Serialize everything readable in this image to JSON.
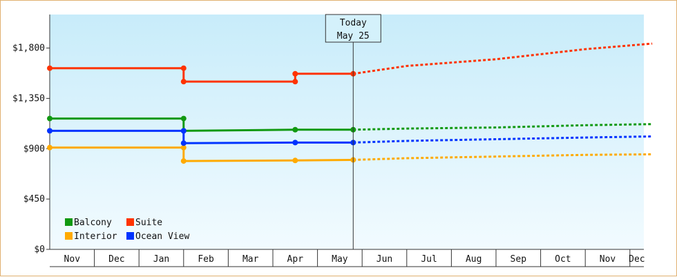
{
  "chart_data": {
    "type": "line",
    "title": "",
    "xlabel": "",
    "ylabel": "",
    "ylim": [
      0,
      2100
    ],
    "yticks": [
      {
        "value": 0,
        "label": "$0"
      },
      {
        "value": 450,
        "label": "$450"
      },
      {
        "value": 900,
        "label": "$900"
      },
      {
        "value": 1350,
        "label": "$1,350"
      },
      {
        "value": 1800,
        "label": "$1,800"
      }
    ],
    "x_range": [
      0,
      13.5
    ],
    "x_months": [
      {
        "label": "Nov",
        "start": 0,
        "end": 1
      },
      {
        "label": "Dec",
        "start": 1,
        "end": 2
      },
      {
        "label": "Jan",
        "start": 2,
        "end": 3
      },
      {
        "label": "Feb",
        "start": 3,
        "end": 4
      },
      {
        "label": "Mar",
        "start": 4,
        "end": 5
      },
      {
        "label": "Apr",
        "start": 5,
        "end": 6
      },
      {
        "label": "May",
        "start": 6,
        "end": 7
      },
      {
        "label": "Jun",
        "start": 7,
        "end": 8
      },
      {
        "label": "Jul",
        "start": 8,
        "end": 9
      },
      {
        "label": "Aug",
        "start": 9,
        "end": 10
      },
      {
        "label": "Sep",
        "start": 10,
        "end": 11
      },
      {
        "label": "Oct",
        "start": 11,
        "end": 12
      },
      {
        "label": "Nov",
        "start": 12,
        "end": 13
      },
      {
        "label": "Dec",
        "start": 13,
        "end": 13.5
      }
    ],
    "today": {
      "line1": "Today",
      "line2": "May 25",
      "x": 6.8
    },
    "legend_position": "bottom-left",
    "grid": false,
    "series": [
      {
        "name": "Balcony",
        "color": "#119911",
        "history": [
          [
            0,
            1170
          ],
          [
            3,
            1170
          ],
          [
            3,
            1060
          ],
          [
            5.5,
            1070
          ],
          [
            6.8,
            1070
          ]
        ],
        "markers": [
          [
            0,
            1170
          ],
          [
            3,
            1170
          ],
          [
            3,
            1060
          ],
          [
            5.5,
            1070
          ],
          [
            6.8,
            1070
          ]
        ],
        "forecast": [
          [
            6.8,
            1070
          ],
          [
            8,
            1080
          ],
          [
            10,
            1090
          ],
          [
            12,
            1110
          ],
          [
            13.5,
            1120
          ]
        ]
      },
      {
        "name": "Suite",
        "color": "#ff3300",
        "history": [
          [
            0,
            1620
          ],
          [
            3,
            1620
          ],
          [
            3,
            1500
          ],
          [
            5.5,
            1500
          ],
          [
            5.5,
            1570
          ],
          [
            6.8,
            1570
          ]
        ],
        "markers": [
          [
            0,
            1620
          ],
          [
            3,
            1620
          ],
          [
            3,
            1500
          ],
          [
            5.5,
            1500
          ],
          [
            5.5,
            1570
          ],
          [
            6.8,
            1570
          ]
        ],
        "forecast": [
          [
            6.8,
            1570
          ],
          [
            8,
            1640
          ],
          [
            10,
            1700
          ],
          [
            12,
            1790
          ],
          [
            13.5,
            1840
          ]
        ]
      },
      {
        "name": "Interior",
        "color": "#ffaa00",
        "history": [
          [
            0,
            910
          ],
          [
            3,
            910
          ],
          [
            3,
            790
          ],
          [
            5.5,
            795
          ],
          [
            6.8,
            800
          ]
        ],
        "markers": [
          [
            0,
            910
          ],
          [
            3,
            910
          ],
          [
            3,
            790
          ],
          [
            5.5,
            795
          ],
          [
            6.8,
            800
          ]
        ],
        "forecast": [
          [
            6.8,
            800
          ],
          [
            8,
            815
          ],
          [
            10,
            830
          ],
          [
            12,
            845
          ],
          [
            13.5,
            850
          ]
        ]
      },
      {
        "name": "Ocean View",
        "color": "#0033ff",
        "history": [
          [
            0,
            1060
          ],
          [
            3,
            1060
          ],
          [
            3,
            950
          ],
          [
            5.5,
            955
          ],
          [
            6.8,
            955
          ]
        ],
        "markers": [
          [
            0,
            1060
          ],
          [
            3,
            1060
          ],
          [
            3,
            950
          ],
          [
            5.5,
            955
          ],
          [
            6.8,
            955
          ]
        ],
        "forecast": [
          [
            6.8,
            955
          ],
          [
            8,
            970
          ],
          [
            10,
            985
          ],
          [
            12,
            1000
          ],
          [
            13.5,
            1010
          ]
        ]
      }
    ]
  }
}
